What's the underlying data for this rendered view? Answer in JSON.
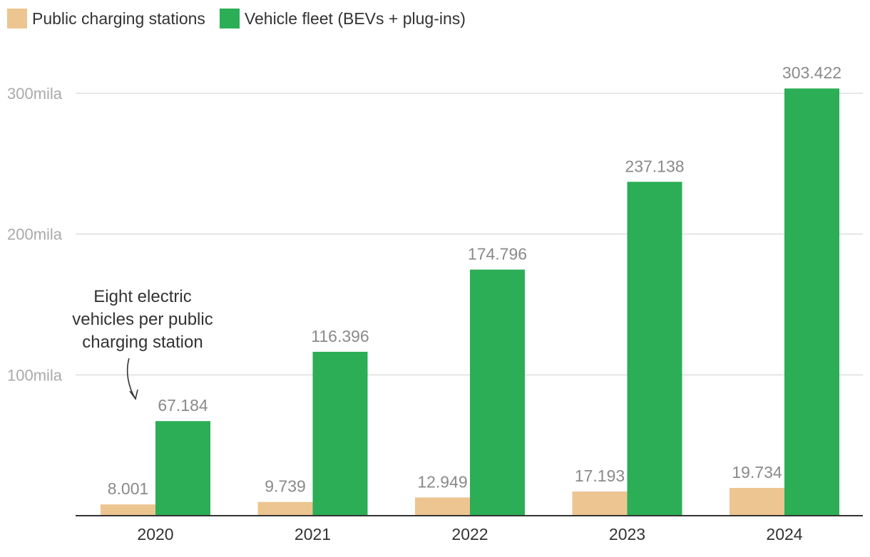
{
  "chart_data": {
    "type": "bar",
    "categories": [
      "2020",
      "2021",
      "2022",
      "2023",
      "2024"
    ],
    "series": [
      {
        "name": "Public charging stations",
        "color": "#EDC591",
        "values": [
          8001,
          9739,
          12949,
          17193,
          19734
        ],
        "labels": [
          "8.001",
          "9.739",
          "12.949",
          "17.193",
          "19.734"
        ]
      },
      {
        "name": "Vehicle fleet (BEVs + plug-ins)",
        "color": "#2BAE55",
        "values": [
          67184,
          116396,
          174796,
          237138,
          303422
        ],
        "labels": [
          "67.184",
          "116.396",
          "174.796",
          "237.138",
          "303.422"
        ]
      }
    ],
    "yticks": [
      {
        "value": 100000,
        "label": "100mila"
      },
      {
        "value": 200000,
        "label": "200mila"
      },
      {
        "value": 300000,
        "label": "300mila"
      }
    ],
    "ylim": [
      0,
      310000
    ],
    "grid": true,
    "legend": "top-left",
    "annotation": {
      "lines": [
        "Eight electric",
        "vehicles per public",
        "charging station"
      ],
      "category": "2020"
    }
  }
}
